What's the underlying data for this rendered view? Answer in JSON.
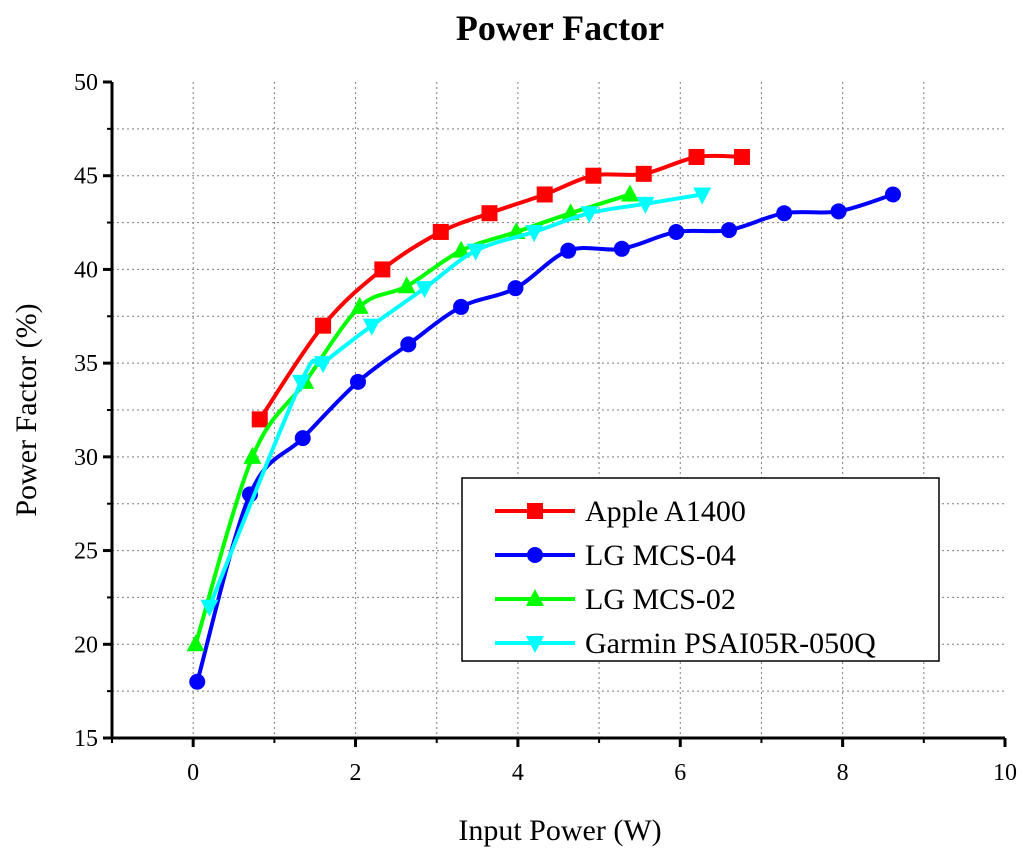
{
  "chart_data": {
    "type": "line",
    "title": "Power Factor",
    "xlabel": "Input Power (W)",
    "ylabel": "Power Factor (%)",
    "xlim": [
      -1,
      10
    ],
    "ylim": [
      15,
      50
    ],
    "x_ticks": [
      0,
      2,
      4,
      6,
      8,
      10
    ],
    "x_minor_ticks": [
      -1,
      1,
      3,
      5,
      7,
      9
    ],
    "y_ticks": [
      15,
      20,
      25,
      30,
      35,
      40,
      45,
      50
    ],
    "y_minor_ticks": [
      17.5,
      22.5,
      27.5,
      32.5,
      37.5,
      42.5,
      47.5
    ],
    "grid": true,
    "legend_position": "bottom-right",
    "series": [
      {
        "name": "Apple A1400",
        "color": "#ff0000",
        "marker": "square",
        "points": [
          [
            0.82,
            32
          ],
          [
            1.6,
            37
          ],
          [
            2.33,
            40
          ],
          [
            3.05,
            42
          ],
          [
            3.65,
            43
          ],
          [
            4.33,
            44
          ],
          [
            4.93,
            45
          ],
          [
            5.55,
            45.1
          ],
          [
            6.2,
            46
          ],
          [
            6.76,
            46
          ]
        ]
      },
      {
        "name": "LG MCS-04",
        "color": "#0000ff",
        "marker": "circle",
        "points": [
          [
            0.05,
            18
          ],
          [
            0.7,
            28
          ],
          [
            1.35,
            31
          ],
          [
            2.03,
            34
          ],
          [
            2.65,
            36
          ],
          [
            3.3,
            38
          ],
          [
            3.97,
            39
          ],
          [
            4.62,
            41
          ],
          [
            5.28,
            41.1
          ],
          [
            5.95,
            42
          ],
          [
            6.6,
            42.1
          ],
          [
            7.28,
            43
          ],
          [
            7.95,
            43.1
          ],
          [
            8.62,
            44
          ]
        ]
      },
      {
        "name": "LG MCS-02",
        "color": "#00ff00",
        "marker": "triangle-up",
        "points": [
          [
            0.03,
            20
          ],
          [
            0.73,
            30
          ],
          [
            1.38,
            34
          ],
          [
            2.05,
            38
          ],
          [
            2.63,
            39.1
          ],
          [
            3.3,
            41
          ],
          [
            3.98,
            42
          ],
          [
            4.65,
            43
          ],
          [
            5.38,
            44
          ]
        ]
      },
      {
        "name": "Garmin PSAI05R-050Q",
        "color": "#00ffff",
        "marker": "triangle-down",
        "points": [
          [
            0.2,
            22
          ],
          [
            1.33,
            34
          ],
          [
            1.6,
            35
          ],
          [
            2.2,
            37
          ],
          [
            2.85,
            39
          ],
          [
            3.48,
            41
          ],
          [
            4.2,
            42
          ],
          [
            4.88,
            43
          ],
          [
            5.57,
            43.5
          ],
          [
            6.27,
            44
          ]
        ]
      }
    ]
  }
}
